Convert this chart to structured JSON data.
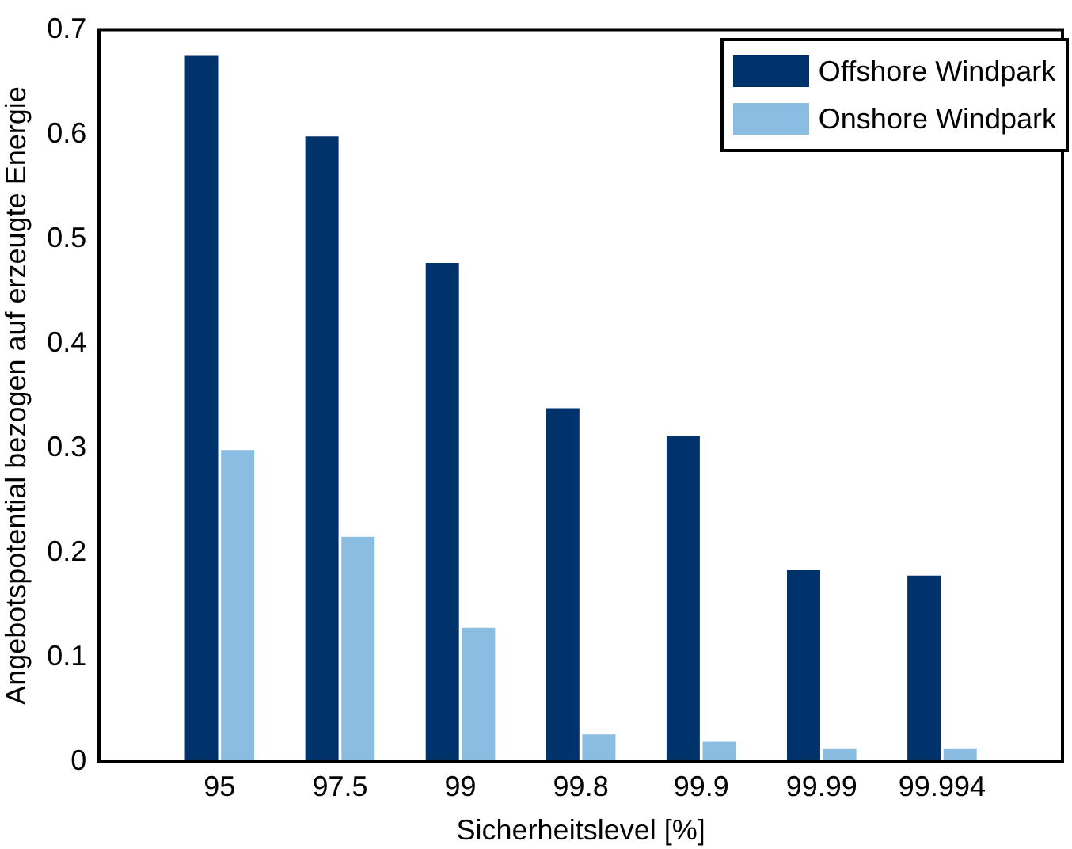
{
  "chart_data": {
    "type": "bar",
    "xlabel": "Sicherheitslevel [%]",
    "ylabel": "Angebotspotential bezogen auf erzeugte Energie",
    "categories": [
      "95",
      "97.5",
      "99",
      "99.8",
      "99.9",
      "99.99",
      "99.994"
    ],
    "series": [
      {
        "name": "Offshore Windpark",
        "color": "#00326b",
        "values": [
          0.675,
          0.598,
          0.477,
          0.338,
          0.311,
          0.183,
          0.178
        ]
      },
      {
        "name": "Onshore Windpark",
        "color": "#8bbde3",
        "values": [
          0.298,
          0.215,
          0.128,
          0.026,
          0.019,
          0.012,
          0.012
        ]
      }
    ],
    "ylim": [
      0,
      0.7
    ],
    "yticks": [
      0,
      0.1,
      0.2,
      0.3,
      0.4,
      0.5,
      0.6,
      0.7
    ],
    "grid": false,
    "legend": "top right"
  }
}
